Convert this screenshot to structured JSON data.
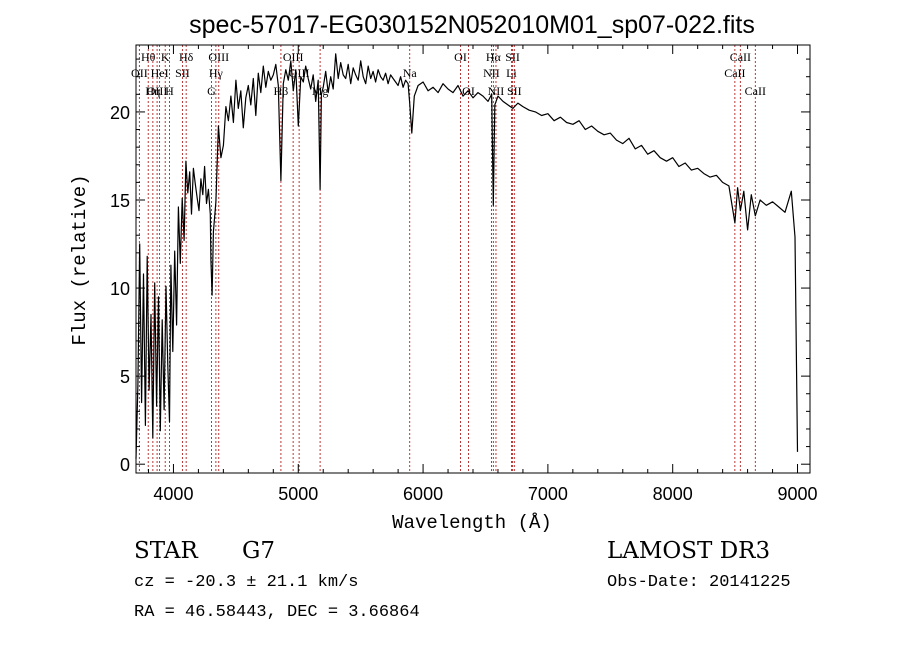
{
  "chart_data": {
    "type": "line",
    "title": "spec-57017-EG030152N052010M01_sp07-022.fits",
    "xlabel": "Wavelength (Å)",
    "ylabel": "Flux (relative)",
    "xlim": [
      3700,
      9100
    ],
    "ylim": [
      -0.5,
      23.8
    ],
    "xticks": [
      4000,
      5000,
      6000,
      7000,
      8000,
      9000
    ],
    "yticks": [
      0,
      5,
      10,
      15,
      20
    ],
    "xminor_step": 200,
    "yminor_step": 1,
    "series": [
      {
        "name": "flux",
        "x": [
          3700,
          3715,
          3730,
          3745,
          3760,
          3775,
          3790,
          3805,
          3820,
          3835,
          3850,
          3865,
          3880,
          3895,
          3910,
          3925,
          3940,
          3955,
          3968,
          3980,
          3995,
          4010,
          4025,
          4040,
          4055,
          4070,
          4085,
          4100,
          4115,
          4130,
          4145,
          4160,
          4175,
          4190,
          4205,
          4220,
          4235,
          4250,
          4265,
          4280,
          4295,
          4300,
          4310,
          4320,
          4340,
          4360,
          4380,
          4400,
          4420,
          4440,
          4460,
          4480,
          4500,
          4520,
          4540,
          4560,
          4580,
          4600,
          4620,
          4640,
          4660,
          4680,
          4700,
          4720,
          4740,
          4760,
          4780,
          4800,
          4820,
          4840,
          4861,
          4880,
          4900,
          4920,
          4940,
          4960,
          4980,
          5000,
          5020,
          5040,
          5060,
          5080,
          5100,
          5120,
          5140,
          5160,
          5175,
          5185,
          5200,
          5220,
          5240,
          5260,
          5280,
          5300,
          5320,
          5340,
          5360,
          5380,
          5400,
          5420,
          5440,
          5460,
          5480,
          5500,
          5520,
          5540,
          5560,
          5580,
          5600,
          5620,
          5640,
          5660,
          5680,
          5700,
          5720,
          5740,
          5760,
          5780,
          5800,
          5820,
          5840,
          5860,
          5880,
          5893,
          5910,
          5930,
          5960,
          6000,
          6040,
          6080,
          6120,
          6160,
          6200,
          6240,
          6280,
          6320,
          6360,
          6400,
          6440,
          6480,
          6520,
          6550,
          6563,
          6575,
          6600,
          6640,
          6680,
          6720,
          6760,
          6800,
          6850,
          6900,
          6950,
          7000,
          7050,
          7100,
          7150,
          7200,
          7250,
          7300,
          7350,
          7400,
          7450,
          7500,
          7550,
          7600,
          7650,
          7700,
          7750,
          7800,
          7850,
          7900,
          7950,
          8000,
          8050,
          8100,
          8150,
          8200,
          8250,
          8300,
          8350,
          8400,
          8450,
          8498,
          8520,
          8542,
          8570,
          8600,
          8630,
          8662,
          8700,
          8750,
          8800,
          8850,
          8900,
          8950,
          8980,
          9000
        ],
        "y": [
          0.3,
          4.5,
          12.5,
          3.5,
          10.8,
          2.2,
          11.8,
          4.2,
          8.5,
          1.5,
          10.3,
          3.3,
          9.5,
          1.9,
          8.2,
          3.1,
          10.1,
          5.6,
          2.4,
          11.3,
          6.4,
          12.1,
          7.9,
          14.6,
          11.4,
          15.1,
          12.7,
          17.2,
          15.4,
          16.6,
          14.2,
          16.8,
          15.9,
          15.1,
          14.4,
          16.2,
          15.3,
          16.9,
          14.8,
          15.6,
          14.2,
          11.6,
          9.6,
          13.2,
          14.9,
          19.2,
          17.4,
          18.1,
          20.3,
          19.5,
          20.9,
          19.4,
          21.8,
          20.2,
          21.2,
          19.1,
          20.8,
          21.5,
          20.4,
          21.9,
          19.8,
          22.2,
          21.1,
          22.6,
          21.4,
          22.3,
          21.8,
          22.1,
          22.7,
          21.5,
          16.1,
          21.6,
          22.4,
          21.8,
          22.9,
          21.2,
          22.4,
          19.2,
          22.0,
          21.7,
          22.6,
          21.9,
          21.3,
          22.1,
          20.6,
          21.8,
          15.6,
          21.0,
          21.4,
          22.3,
          21.1,
          22.0,
          21.3,
          23.3,
          21.9,
          22.8,
          22.1,
          21.9,
          22.7,
          21.6,
          22.5,
          22.1,
          21.8,
          22.9,
          22.0,
          21.6,
          22.6,
          21.9,
          22.3,
          21.7,
          22.4,
          22.0,
          21.8,
          22.2,
          21.6,
          22.1,
          21.9,
          21.7,
          21.5,
          22.0,
          21.4,
          21.8,
          21.6,
          20.5,
          18.8,
          20.9,
          21.5,
          21.7,
          21.2,
          21.4,
          21.1,
          21.6,
          21.3,
          21.1,
          21.5,
          20.9,
          21.2,
          20.8,
          21.1,
          20.9,
          20.6,
          21.0,
          14.7,
          20.4,
          20.9,
          20.6,
          20.4,
          20.2,
          20.5,
          20.3,
          20.1,
          20.0,
          19.8,
          19.9,
          19.5,
          19.7,
          19.4,
          19.3,
          19.5,
          19.0,
          19.2,
          18.9,
          18.7,
          18.8,
          18.4,
          18.2,
          18.5,
          17.9,
          18.1,
          17.6,
          17.8,
          17.4,
          17.2,
          17.4,
          16.9,
          17.1,
          16.7,
          16.8,
          16.5,
          16.3,
          16.4,
          16.0,
          15.8,
          13.7,
          15.7,
          14.4,
          15.5,
          13.3,
          15.3,
          14.1,
          15.0,
          14.7,
          14.9,
          14.6,
          14.3,
          15.5,
          12.9,
          0.7
        ]
      }
    ],
    "line_markers": [
      {
        "x": 3727,
        "label": "OII",
        "row": 1
      },
      {
        "x": 3798,
        "label": "Hθ",
        "row": 0
      },
      {
        "x": 3835,
        "label": "Hη",
        "row": 2
      },
      {
        "x": 3869,
        "label": "OIII",
        "row": 2
      },
      {
        "x": 3889,
        "label": "HeI",
        "row": 1
      },
      {
        "x": 3934,
        "label": "K",
        "row": 0
      },
      {
        "x": 3968,
        "label": "H",
        "row": 2
      },
      {
        "x": 4072,
        "label": "SII",
        "row": 1
      },
      {
        "x": 4102,
        "label": "Hδ",
        "row": 0
      },
      {
        "x": 4305,
        "label": "G",
        "row": 2
      },
      {
        "x": 4340,
        "label": "Hγ",
        "row": 1
      },
      {
        "x": 4363,
        "label": "OIII",
        "row": 0
      },
      {
        "x": 4861,
        "label": "Hβ",
        "row": 2
      },
      {
        "x": 4959,
        "label": "OIII",
        "row": 0
      },
      {
        "x": 5007,
        "label": "OIII",
        "row": 1
      },
      {
        "x": 5175,
        "label": "Mg",
        "row": 2
      },
      {
        "x": 5893,
        "label": "Na",
        "row": 1
      },
      {
        "x": 6300,
        "label": "OI",
        "row": 0
      },
      {
        "x": 6364,
        "label": "OI",
        "row": 2
      },
      {
        "x": 6548,
        "label": "NII",
        "row": 1
      },
      {
        "x": 6563,
        "label": "Hα",
        "row": 0
      },
      {
        "x": 6584,
        "label": "NII",
        "row": 2
      },
      {
        "x": 6708,
        "label": "Li",
        "row": 1
      },
      {
        "x": 6717,
        "label": "SII",
        "row": 0
      },
      {
        "x": 6731,
        "label": "SII",
        "row": 2
      },
      {
        "x": 8498,
        "label": "CaII",
        "row": 1
      },
      {
        "x": 8542,
        "label": "CaII",
        "row": 0
      },
      {
        "x": 8662,
        "label": "CaII",
        "row": 2
      }
    ]
  },
  "info": {
    "object_class": "STAR",
    "subclass": "G7",
    "survey": "LAMOST DR3",
    "redshift": "cz = -20.3 ± 21.1 km/s",
    "obs_date": "Obs-Date: 20141225",
    "coords": "RA =  46.58443, DEC =   3.66864"
  }
}
